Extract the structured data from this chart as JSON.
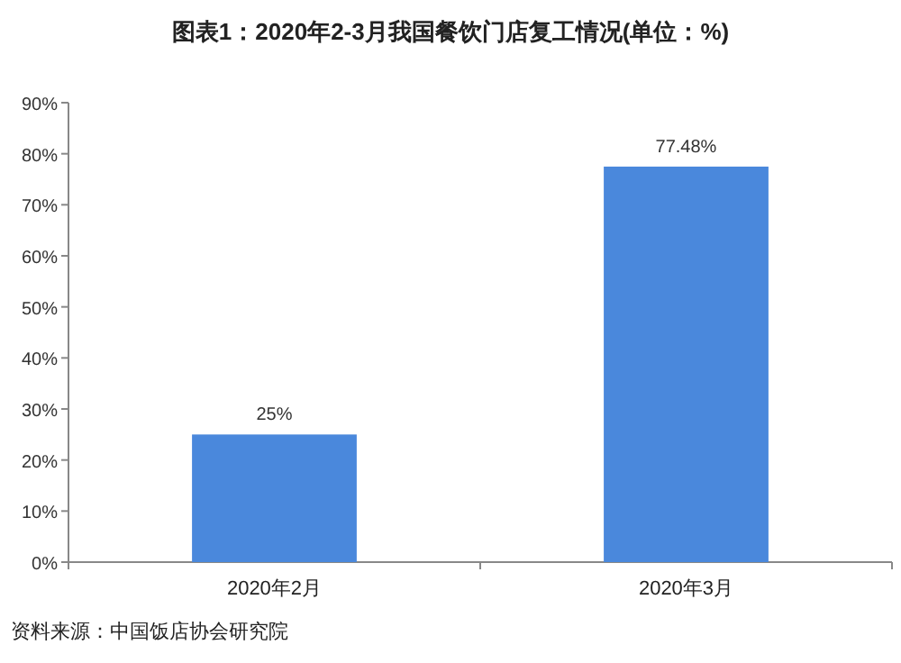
{
  "chart_data": {
    "type": "bar",
    "title": "图表1：2020年2-3月我国餐饮门店复工情况(单位：%)",
    "categories": [
      "2020年2月",
      "2020年3月"
    ],
    "values": [
      25,
      77.48
    ],
    "value_labels": [
      "25%",
      "77.48%"
    ],
    "color": "#4a88dc",
    "ylim": [
      0,
      90
    ],
    "yticks": [
      {
        "value": 0,
        "label": "0%"
      },
      {
        "value": 10,
        "label": "10%"
      },
      {
        "value": 20,
        "label": "20%"
      },
      {
        "value": 30,
        "label": "30%"
      },
      {
        "value": 40,
        "label": "40%"
      },
      {
        "value": 50,
        "label": "50%"
      },
      {
        "value": 60,
        "label": "60%"
      },
      {
        "value": 70,
        "label": "70%"
      },
      {
        "value": 80,
        "label": "80%"
      },
      {
        "value": 90,
        "label": "90%"
      }
    ],
    "annotations": [
      "资料来源：中国饭店协会研究院"
    ]
  }
}
